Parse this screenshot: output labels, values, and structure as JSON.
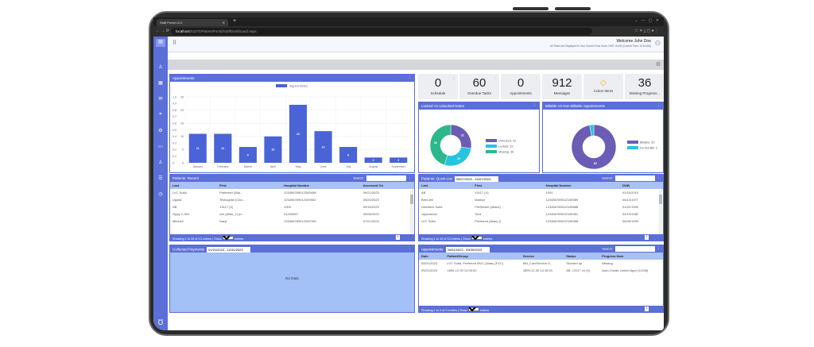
{
  "browser": {
    "tab_title": "Staff Portal v2.0",
    "url_host": "localhost",
    "url_path": ":53270/PatientPortal/StaffDashboard.aspx"
  },
  "header": {
    "welcome": "Welcome John Doe",
    "timezone_note": "All Times Are Displayed In Your Current Time Zone: GMT -04:00 (Current Time: 12:16 AM)"
  },
  "cards": [
    {
      "value": "0",
      "label": "Schedule"
    },
    {
      "value": "60",
      "label": "Overdue Tasks"
    },
    {
      "value": "0",
      "label": "Appointments"
    },
    {
      "value": "912",
      "label": "Messages"
    },
    {
      "value": "",
      "label": "Action Items",
      "icon": "warning-diamond-icon"
    },
    {
      "value": "36",
      "label": "Missing Progress..."
    }
  ],
  "colors": {
    "accent": "#5b6fd8",
    "bar": "#4a63d6",
    "unlocked": "#6b5cb5",
    "locked": "#27c3e0",
    "missing": "#2bb88a",
    "light_blue": "#a9c1f5"
  },
  "chart_data": [
    {
      "type": "bar",
      "title": "Appointments",
      "categories": [
        "January",
        "February",
        "March",
        "April",
        "May",
        "June",
        "July",
        "August",
        "September"
      ],
      "series": [
        {
          "name": "Signed Notes",
          "values": [
            11,
            11,
            6,
            10,
            22,
            12,
            6,
            2,
            2
          ]
        }
      ],
      "ylim": [
        0,
        25
      ],
      "yticks": [
        0,
        5,
        10,
        15,
        20,
        25
      ],
      "y2lim": [
        0,
        1.0
      ],
      "y2ticks": [
        "0",
        "0.1",
        "0.2",
        "0.3",
        "0.4",
        "0.5",
        "0.6",
        "0.7",
        "0.8",
        "0.9",
        "1.0"
      ],
      "grid": true,
      "legend": "top"
    },
    {
      "type": "pie",
      "title": "Locked Vs Unlocked Notes",
      "labels": [
        "Unlocked",
        "Locked",
        "Missing"
      ],
      "values": [
        22,
        22,
        36
      ],
      "legend_text": [
        "Unlocked: 22",
        "Locked: 22",
        "Missing: 36"
      ],
      "legend": "right"
    },
    {
      "type": "pie",
      "title": "Billable Vs Non-Billable Appointments",
      "labels": [
        "Billable",
        "Do Not Bill"
      ],
      "values": [
        62,
        2
      ],
      "legend_text": [
        "Billable: 62",
        "Do Not Bill: 2"
      ],
      "legend": "right"
    }
  ],
  "patients_recent": {
    "title": "Patients: Recent",
    "search_label": "Search:",
    "columns": [
      "Last",
      "First",
      "Hospital Number",
      "Accessed On"
    ],
    "rows": [
      [
        "LVC Sulfa",
        "Preferred (Alia...",
        "12345678901234S958",
        "09/21/2023"
      ],
      [
        "Ugolia",
        "TestUgolia (Cha...",
        "12345678901234S962",
        "09/20/2023"
      ],
      [
        "AB",
        "13117 (X)",
        "1000",
        "09/16/2023"
      ],
      [
        "Zippy X-951",
        "zzz (Alias_1) (in",
        "01234567",
        "09/06/2023"
      ],
      [
        "Mitchell",
        "Daryl",
        "12345678901234S765",
        "07/21/2023"
      ]
    ],
    "footer": "Showing 1 to 10 of 13 entries  |  Show",
    "show": "10",
    "entries": "entries",
    "page": "1"
  },
  "quick_list": {
    "title": "Patients: Quick-List",
    "date_range": "09/07/2023 - 10/07/2023",
    "search_label": "Search:",
    "columns": [
      "Last",
      "First",
      "Hospital Number",
      "DOB"
    ],
    "rows": [
      [
        "AB",
        "13117 (X)",
        "1000",
        "01/10/2010"
      ],
      [
        "Bred-bill",
        "Marilyn",
        "12345678901234S969",
        "06/14/1977"
      ],
      [
        "Dembers Sulfa",
        "PrefName (Alias1) ...",
        "12345678901234S888",
        "01/01/1999"
      ],
      [
        "Jayaraman",
        "Tara",
        "12345678901234S951",
        "04/19/1982"
      ],
      [
        "LVC Sulfa",
        "Preferred (Alias) (f",
        "12345678901234S958",
        "06/05/1990"
      ]
    ],
    "footer": "Showing 1 to 10 of 13 entries  |  Show",
    "show": "10",
    "entries": "entries",
    "page": "1"
  },
  "payments": {
    "title": "Collected Payments",
    "date_range": "01/01/2023 - 12/31/2023",
    "empty": "No Data"
  },
  "appointments_table": {
    "title": "Appointments",
    "date_range": "09/01/2023 - 09/30/2023",
    "search_label": "Search:",
    "columns": [
      "Date",
      "Patient/Group",
      "Service",
      "Status",
      "Progress Note"
    ],
    "rows": [
      [
        "09/21/2023",
        "LVC Sulfa, Preferred MVC (Alias) (FVC)",
        "BM_CareService G...",
        "Showed up",
        "Missing"
      ],
      [
        "09/21/2023",
        "1899-12-30 14:00:00",
        "1899-12-30 14:15:00",
        "AB, 13117 ch (X)",
        "Auto-Create Linked Appt (11335)"
      ]
    ],
    "footer": "Showing 1 to 2 of 2 entries  |  Show",
    "show": "10",
    "entries": "entries",
    "page": "1"
  }
}
